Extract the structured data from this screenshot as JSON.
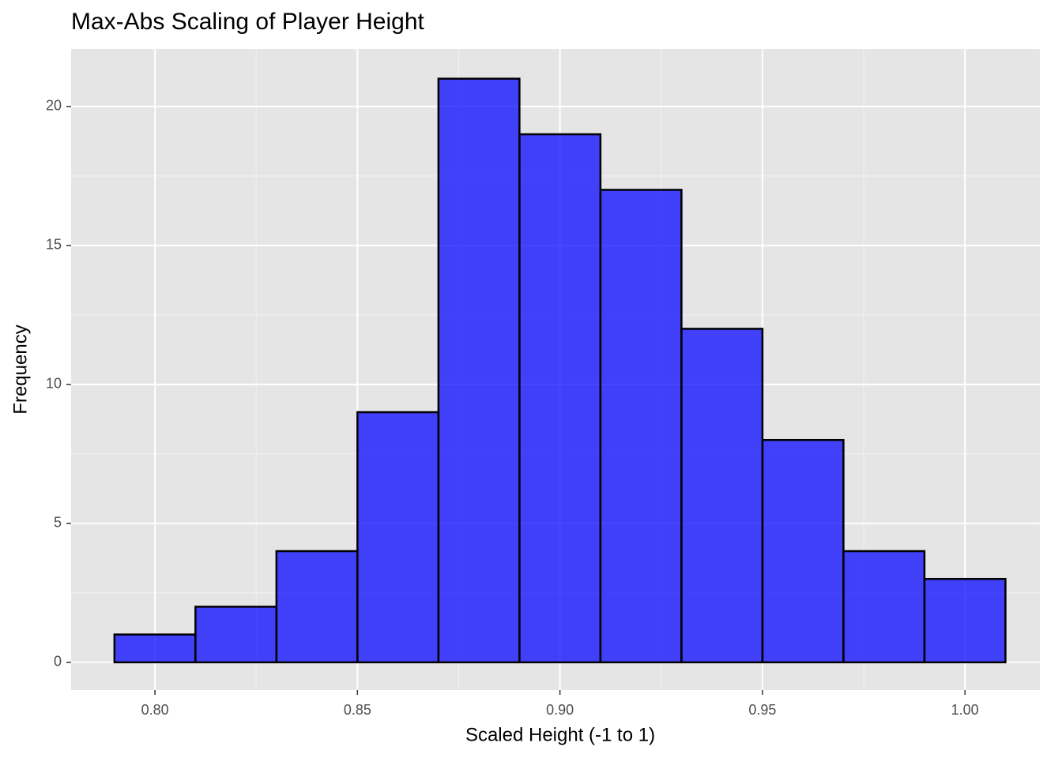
{
  "chart_data": {
    "type": "histogram",
    "title": "Max-Abs Scaling of Player Height",
    "x_label": "Scaled Height (-1 to 1)",
    "y_label": "Frequency",
    "bins": [
      0.79,
      0.81,
      0.83,
      0.85,
      0.87,
      0.89,
      0.91,
      0.93,
      0.95,
      0.97,
      0.99,
      1.01
    ],
    "counts": [
      1,
      2,
      4,
      9,
      21,
      19,
      17,
      12,
      8,
      4,
      3
    ],
    "color": "#0000ff",
    "alpha": 0.72,
    "edge_color": "#000000",
    "xlim": [
      0.7793,
      1.0185
    ],
    "ylim": [
      -1,
      22.07
    ],
    "xticks": [
      {
        "value": 0.8,
        "label": "0.80"
      },
      0.85,
      {
        "value": 0.9,
        "label": "0.90"
      },
      0.95,
      {
        "value": 1.0,
        "label": "1.00"
      }
    ],
    "yticks": [
      0,
      5,
      10,
      15,
      20
    ],
    "grid": true
  }
}
